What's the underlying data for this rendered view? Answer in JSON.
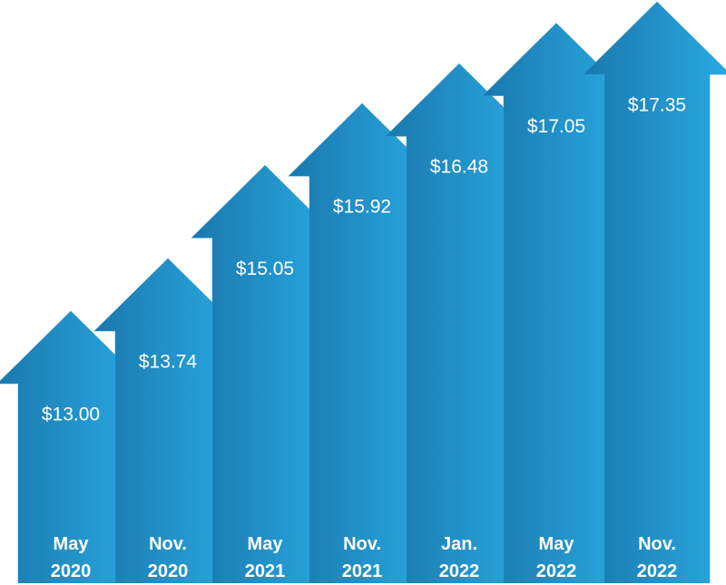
{
  "chart_data": {
    "type": "bar",
    "categories": [
      "May 2020",
      "Nov. 2020",
      "May 2021",
      "Nov. 2021",
      "Jan. 2022",
      "May 2022",
      "Nov. 2022"
    ],
    "values": [
      13.0,
      13.74,
      15.05,
      15.92,
      16.48,
      17.05,
      17.35
    ],
    "value_labels": [
      "$13.00",
      "$13.74",
      "$15.05",
      "$15.92",
      "$16.48",
      "$17.05",
      "$17.35"
    ],
    "color": "#1f95d0"
  }
}
